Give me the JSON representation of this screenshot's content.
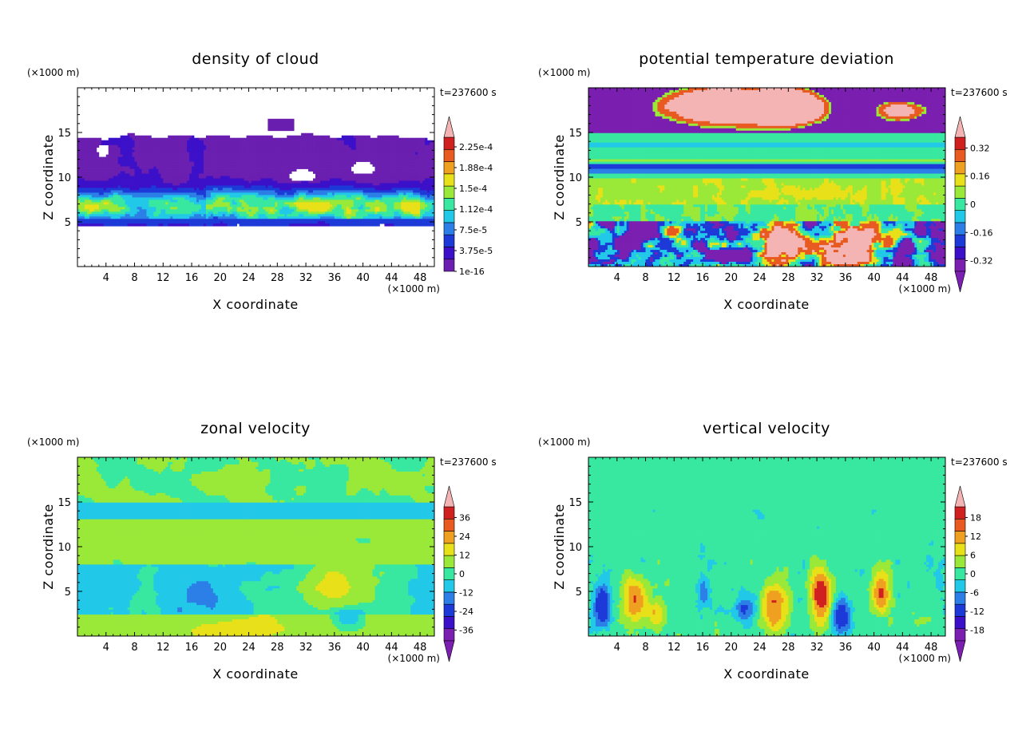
{
  "figure": {
    "time_label": "t=237600 s",
    "x_unit": "(×1000 m)",
    "z_unit": "(×1000 m)",
    "xlabel": "X coordinate",
    "ylabel": "Z coordinate"
  },
  "chart_data": [
    {
      "type": "heatmap",
      "title": "density of cloud",
      "xlabel": "X coordinate",
      "ylabel": "Z coordinate",
      "x_unit": "(×1000 m)",
      "y_unit": "(×1000 m)",
      "annotation": "t=237600 s",
      "xlim": [
        0,
        50
      ],
      "ylim": [
        0,
        20
      ],
      "x_ticks": [
        4,
        8,
        12,
        16,
        20,
        24,
        28,
        32,
        36,
        40,
        44,
        48
      ],
      "y_ticks": [
        5,
        10,
        15
      ],
      "colorbar_labels": [
        "1e-16",
        "3.75e-5",
        "7.5e-5",
        "1.12e-4",
        "1.5e-4",
        "1.88e-4",
        "2.25e-4"
      ],
      "colorbar_arrows": [
        "top"
      ],
      "colors": [
        "#6a1fb0",
        "#3b10c8",
        "#1d3ad8",
        "#2b7fe6",
        "#22c8e8",
        "#38e8a0",
        "#9ae838",
        "#e8e018",
        "#f0a020",
        "#e85a20",
        "#d02020",
        "#f4b4b4"
      ],
      "description_levels": "cloud layer between z≈4.5 and z≈15, densest near z≈5-8"
    },
    {
      "type": "heatmap",
      "title": "potential temperature deviation",
      "xlabel": "X coordinate",
      "ylabel": "Z coordinate",
      "x_unit": "(×1000 m)",
      "y_unit": "(×1000 m)",
      "annotation": "t=237600 s",
      "xlim": [
        0,
        50
      ],
      "ylim": [
        0,
        20
      ],
      "x_ticks": [
        4,
        8,
        12,
        16,
        20,
        24,
        28,
        32,
        36,
        40,
        44,
        48
      ],
      "y_ticks": [
        5,
        10,
        15
      ],
      "colorbar_labels": [
        "-0.32",
        "-0.16",
        "0",
        "0.16",
        "0.32"
      ],
      "colorbar_arrows": [
        "top",
        "bottom"
      ],
      "colors": [
        "#7a1fb0",
        "#3b10c8",
        "#1d3ad8",
        "#2b7fe6",
        "#22c8e8",
        "#38e8a0",
        "#9ae838",
        "#e8e018",
        "#f0a020",
        "#e85a20",
        "#d02020",
        "#f4b4b4"
      ]
    },
    {
      "type": "heatmap",
      "title": "zonal velocity",
      "xlabel": "X coordinate",
      "ylabel": "Z coordinate",
      "x_unit": "(×1000 m)",
      "y_unit": "(×1000 m)",
      "annotation": "t=237600 s",
      "xlim": [
        0,
        50
      ],
      "ylim": [
        0,
        20
      ],
      "x_ticks": [
        4,
        8,
        12,
        16,
        20,
        24,
        28,
        32,
        36,
        40,
        44,
        48
      ],
      "y_ticks": [
        5,
        10,
        15
      ],
      "colorbar_labels": [
        "-36",
        "-24",
        "-12",
        "0",
        "12",
        "24",
        "36"
      ],
      "colorbar_arrows": [
        "top",
        "bottom"
      ],
      "colors": [
        "#7a1fb0",
        "#3b10c8",
        "#1d3ad8",
        "#2b7fe6",
        "#22c8e8",
        "#38e8a0",
        "#9ae838",
        "#e8e018",
        "#f0a020",
        "#e85a20",
        "#d02020",
        "#f4b4b4"
      ]
    },
    {
      "type": "heatmap",
      "title": "vertical velocity",
      "xlabel": "X coordinate",
      "ylabel": "Z coordinate",
      "x_unit": "(×1000 m)",
      "y_unit": "(×1000 m)",
      "annotation": "t=237600 s",
      "xlim": [
        0,
        50
      ],
      "ylim": [
        0,
        20
      ],
      "x_ticks": [
        4,
        8,
        12,
        16,
        20,
        24,
        28,
        32,
        36,
        40,
        44,
        48
      ],
      "y_ticks": [
        5,
        10,
        15
      ],
      "colorbar_labels": [
        "-18",
        "-12",
        "-6",
        "0",
        "6",
        "12",
        "18"
      ],
      "colorbar_arrows": [
        "top",
        "bottom"
      ],
      "colors": [
        "#7a1fb0",
        "#3b10c8",
        "#1d3ad8",
        "#2b7fe6",
        "#22c8e8",
        "#38e8a0",
        "#9ae838",
        "#e8e018",
        "#f0a020",
        "#e85a20",
        "#d02020",
        "#f4b4b4"
      ]
    }
  ]
}
